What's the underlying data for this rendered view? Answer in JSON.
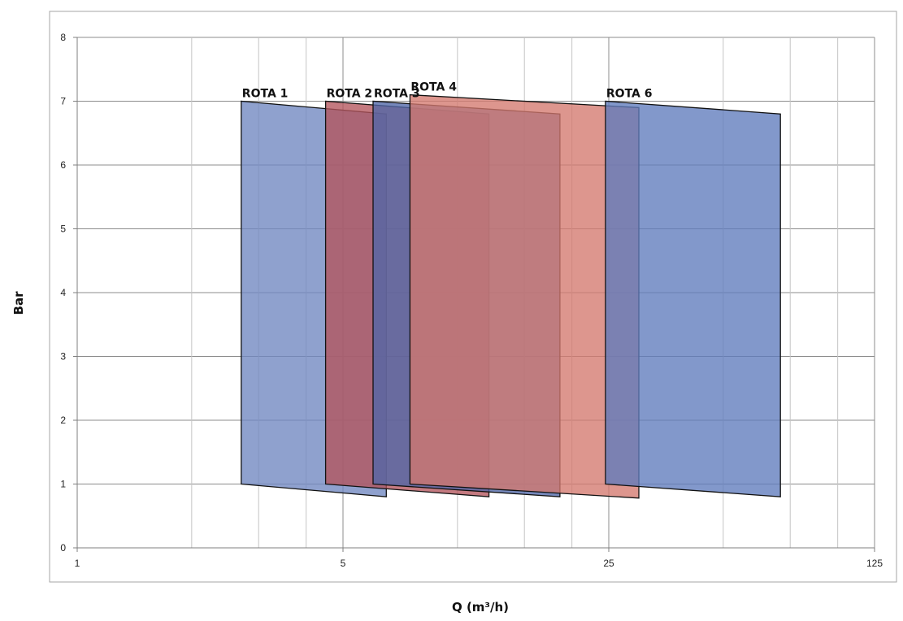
{
  "chart_data": {
    "type": "area",
    "xlabel": "Q (m³/h)",
    "ylabel": "Bar",
    "x_scale": "log",
    "xlim": [
      1,
      125
    ],
    "ylim": [
      0,
      8
    ],
    "x_tick_labels": [
      "1",
      "5",
      "25",
      "125"
    ],
    "y_tick_labels": [
      "0",
      "1",
      "2",
      "3",
      "4",
      "5",
      "6",
      "7",
      "8"
    ],
    "grid": true,
    "colors": {
      "blue": "#6f87c0",
      "red": "#b4545c",
      "salmon": "#d4786e"
    },
    "series": [
      {
        "name": "ROTA 1",
        "color": "#6f87c0",
        "polygon": [
          [
            2.7,
            1.0
          ],
          [
            6.5,
            0.8
          ],
          [
            6.5,
            6.8
          ],
          [
            2.7,
            7.0
          ]
        ]
      },
      {
        "name": "ROTA 2",
        "color": "#b4545c",
        "polygon": [
          [
            4.5,
            1.0
          ],
          [
            12.1,
            0.8
          ],
          [
            12.1,
            6.8
          ],
          [
            4.5,
            7.0
          ]
        ]
      },
      {
        "name": "ROTA 3",
        "color": "#4f66a8",
        "polygon": [
          [
            6.0,
            1.0
          ],
          [
            18.6,
            0.8
          ],
          [
            18.6,
            6.8
          ],
          [
            6.0,
            7.0
          ]
        ]
      },
      {
        "name": "ROTA 4",
        "color": "#d4786e",
        "polygon": [
          [
            7.5,
            1.0
          ],
          [
            30.0,
            0.78
          ],
          [
            30.0,
            6.9
          ],
          [
            7.5,
            7.1
          ]
        ]
      },
      {
        "name": "ROTA 6",
        "color": "#5f7bbd",
        "polygon": [
          [
            24.5,
            1.0
          ],
          [
            70.7,
            0.8
          ],
          [
            70.7,
            6.8
          ],
          [
            24.5,
            7.0
          ]
        ]
      }
    ]
  }
}
